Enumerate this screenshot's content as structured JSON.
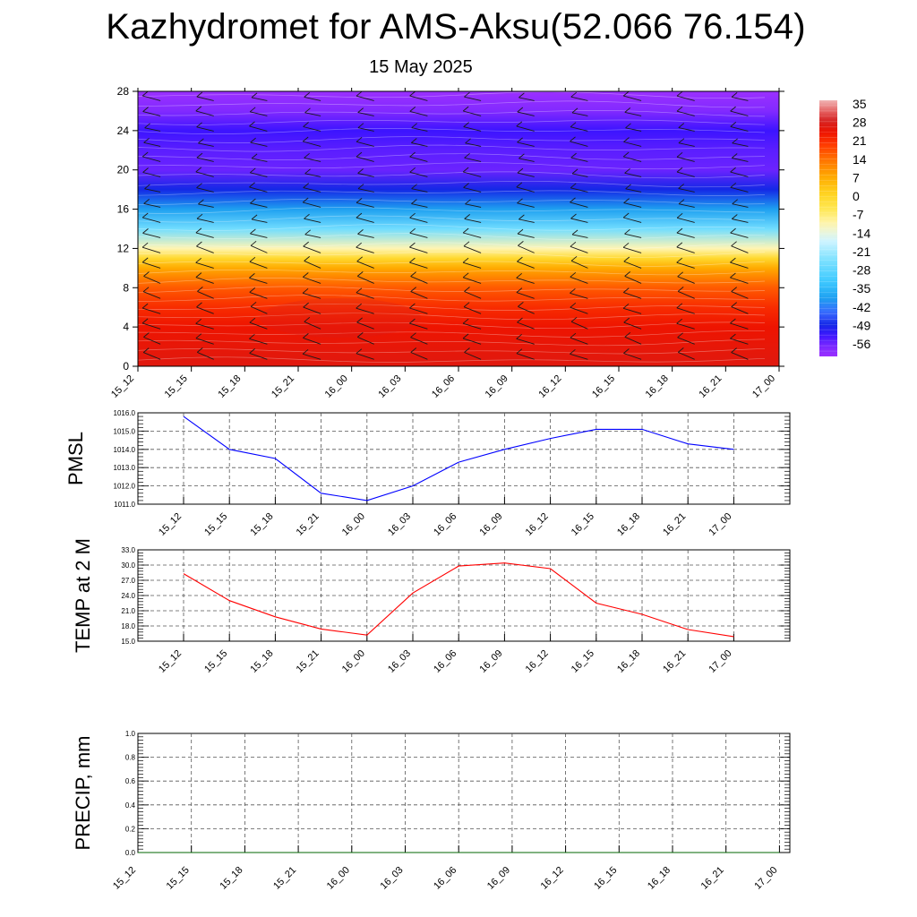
{
  "header": {
    "title": "Kazhydromet for AMS-Aksu(52.066 76.154)",
    "subtitle": "15 May 2025"
  },
  "chart_data": [
    {
      "type": "heatmap",
      "title": "",
      "xlabel": "",
      "ylabel": "",
      "x": [
        "15_12",
        "15_15",
        "15_18",
        "15_21",
        "16_00",
        "16_03",
        "16_06",
        "16_09",
        "16_12",
        "16_15",
        "16_18",
        "16_21",
        "17_00"
      ],
      "y_ticks": [
        0,
        4,
        8,
        12,
        16,
        20,
        24,
        28
      ],
      "ylim": [
        0,
        28
      ],
      "colorbar": {
        "labels": [
          "35",
          "28",
          "21",
          "14",
          "7",
          "0",
          "-7",
          "-14",
          "-21",
          "-28",
          "-35",
          "-42",
          "-49",
          "-56"
        ],
        "range": [
          -60,
          37
        ]
      },
      "temperature_profile_by_level": [
        {
          "level": 0,
          "value": 27
        },
        {
          "level": 2,
          "value": 26
        },
        {
          "level": 4,
          "value": 25
        },
        {
          "level": 6,
          "value": 22
        },
        {
          "level": 8,
          "value": 17
        },
        {
          "level": 10,
          "value": 8
        },
        {
          "level": 11,
          "value": 0
        },
        {
          "level": 12,
          "value": -10
        },
        {
          "level": 14,
          "value": -25
        },
        {
          "level": 16,
          "value": -38
        },
        {
          "level": 18,
          "value": -48
        },
        {
          "level": 20,
          "value": -55
        },
        {
          "level": 22,
          "value": -54
        },
        {
          "level": 24,
          "value": -52
        },
        {
          "level": 26,
          "value": -57
        },
        {
          "level": 28,
          "value": -60
        }
      ],
      "wind_barbs": true
    },
    {
      "type": "line",
      "title": "",
      "ylabel": "PMSL",
      "x": [
        "15_12",
        "15_15",
        "15_18",
        "15_21",
        "16_00",
        "16_03",
        "16_06",
        "16_09",
        "16_12",
        "16_15",
        "16_18",
        "16_21",
        "17_00"
      ],
      "series": [
        {
          "values": [
            1015.8,
            1014.0,
            1013.5,
            1011.6,
            1011.2,
            1012.0,
            1013.3,
            1014.0,
            1014.6,
            1015.1,
            1015.1,
            1014.3,
            1014.0
          ],
          "color": "#0000ff"
        }
      ],
      "ylim": [
        1011.0,
        1016.0
      ],
      "y_ticks": [
        "1011.0",
        "1012.0",
        "1013.0",
        "1014.0",
        "1015.0",
        "1016.0"
      ],
      "grid": true
    },
    {
      "type": "line",
      "title": "",
      "ylabel": "TEMP at 2 M",
      "x": [
        "15_12",
        "15_15",
        "15_18",
        "15_21",
        "16_00",
        "16_03",
        "16_06",
        "16_09",
        "16_12",
        "16_15",
        "16_18",
        "16_21",
        "17_00"
      ],
      "series": [
        {
          "values": [
            28.3,
            23.0,
            19.8,
            17.4,
            16.2,
            24.5,
            29.8,
            30.4,
            29.3,
            22.5,
            20.3,
            17.3,
            15.9
          ],
          "color": "#ff0000"
        }
      ],
      "ylim": [
        15.0,
        33.0
      ],
      "y_ticks": [
        "15.0",
        "18.0",
        "21.0",
        "24.0",
        "27.0",
        "30.0",
        "33.0"
      ],
      "grid": true
    },
    {
      "type": "line",
      "title": "",
      "ylabel": "PRECIP, mm",
      "x": [
        "15_12",
        "15_15",
        "15_18",
        "15_21",
        "16_00",
        "16_03",
        "16_06",
        "16_09",
        "16_12",
        "16_15",
        "16_18",
        "16_21",
        "17_00"
      ],
      "series": [
        {
          "values": [
            0,
            0,
            0,
            0,
            0,
            0,
            0,
            0,
            0,
            0,
            0,
            0,
            0
          ],
          "color": "#006400"
        }
      ],
      "ylim": [
        0.0,
        1.0
      ],
      "y_ticks": [
        "0.0",
        "0.2",
        "0.4",
        "0.6",
        "0.8",
        "1.0"
      ],
      "grid": true
    }
  ]
}
